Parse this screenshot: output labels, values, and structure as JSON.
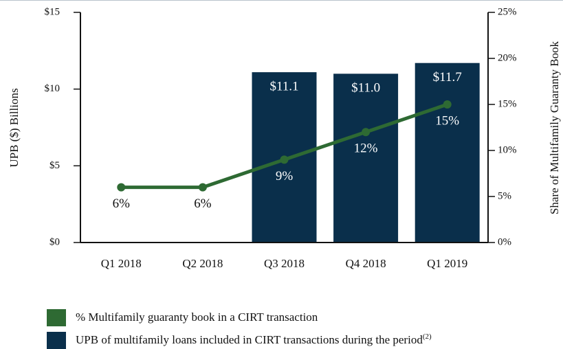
{
  "chart_data": {
    "type": "bar",
    "categories": [
      "Q1 2018",
      "Q2 2018",
      "Q3 2018",
      "Q4 2018",
      "Q1 2019"
    ],
    "ylabel": "UPB ($) Billions",
    "y2label": "Share of Multifamily Guaranty Book",
    "ylim": [
      0,
      15
    ],
    "yticks": [
      {
        "value": 0,
        "label": "$0"
      },
      {
        "value": 5,
        "label": "$5"
      },
      {
        "value": 10,
        "label": "$10"
      },
      {
        "value": 15,
        "label": "$15"
      }
    ],
    "y2lim": [
      0,
      25
    ],
    "y2ticks": [
      {
        "value": 0,
        "label": "0%"
      },
      {
        "value": 5,
        "label": "5%"
      },
      {
        "value": 10,
        "label": "10%"
      },
      {
        "value": 15,
        "label": "15%"
      },
      {
        "value": 20,
        "label": "20%"
      },
      {
        "value": 25,
        "label": "25%"
      }
    ],
    "series": [
      {
        "name": "% Multifamily guaranty book in a CIRT transaction",
        "type": "line",
        "axis": "y2",
        "color": "#2e6a33",
        "values": [
          6,
          6,
          9,
          12,
          15
        ],
        "value_labels": [
          "6%",
          "6%",
          "9%",
          "12%",
          "15%"
        ]
      },
      {
        "name": "UPB of multifamily loans included in CIRT transactions during the period",
        "legend_note": "(2)",
        "type": "bar",
        "axis": "y",
        "color": "#0a2f4b",
        "values": [
          null,
          null,
          11.1,
          11.0,
          11.7
        ],
        "value_labels": [
          null,
          null,
          "$11.1",
          "$11.0",
          "$11.7"
        ]
      }
    ]
  }
}
